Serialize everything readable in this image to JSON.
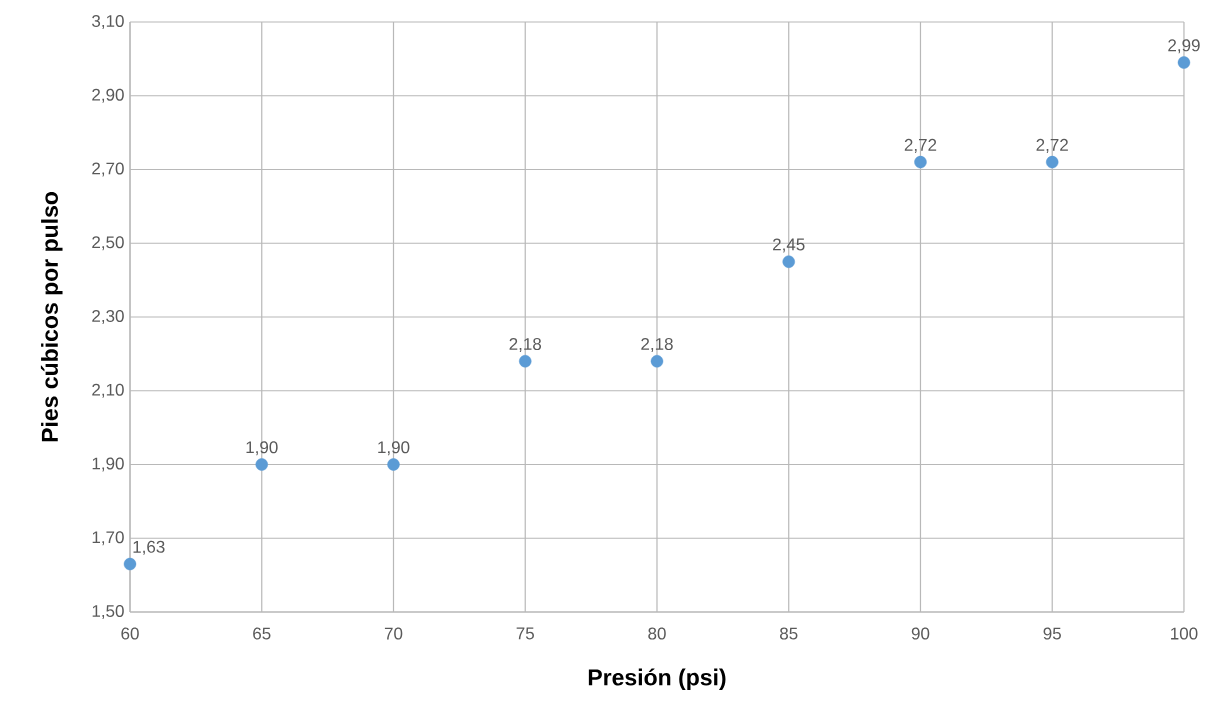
{
  "chart_data": {
    "type": "scatter",
    "xlabel": "Presión (psi)",
    "ylabel": "Pies cúbicos por pulso",
    "series": [
      {
        "color": "#5b9bd5",
        "x": [
          60,
          65,
          70,
          75,
          80,
          85,
          90,
          95,
          100
        ],
        "values": [
          1.63,
          1.9,
          1.9,
          2.18,
          2.18,
          2.45,
          2.72,
          2.72,
          2.99
        ],
        "value_labels": [
          "1,63",
          "1,90",
          "1,90",
          "2,18",
          "2,18",
          "2,45",
          "2,72",
          "2,72",
          "2,99"
        ]
      }
    ],
    "xlim": [
      60,
      100
    ],
    "xticks": [
      60,
      65,
      70,
      75,
      80,
      85,
      90,
      95,
      100
    ],
    "ylim": [
      1.5,
      3.1
    ],
    "yticks": [
      {
        "value": 1.5,
        "label": "1,50"
      },
      {
        "value": 1.7,
        "label": "1,70"
      },
      {
        "value": 1.9,
        "label": "1,90"
      },
      {
        "value": 2.1,
        "label": "2,10"
      },
      {
        "value": 2.3,
        "label": "2,30"
      },
      {
        "value": 2.5,
        "label": "2,50"
      },
      {
        "value": 2.7,
        "label": "2,70"
      },
      {
        "value": 2.9,
        "label": "2,90"
      },
      {
        "value": 3.1,
        "label": "3,10"
      }
    ],
    "grid": true
  }
}
